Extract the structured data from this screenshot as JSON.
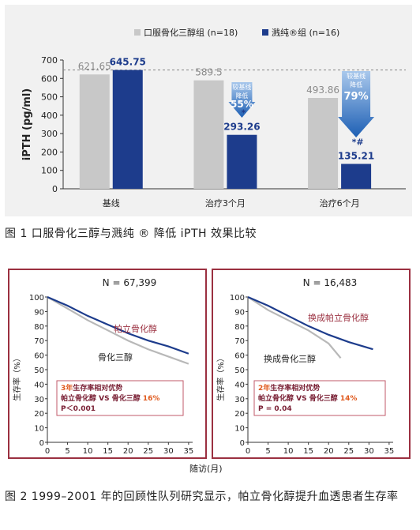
{
  "figure1": {
    "caption": "图 1  口服骨化三醇与溅纯 ® 降低 iPTH 效果比较",
    "chart_data": {
      "type": "bar",
      "ylabel": "iPTH (pg/ml)",
      "ylim": [
        0,
        700
      ],
      "yticks": [
        0,
        100,
        200,
        300,
        400,
        500,
        600,
        700
      ],
      "categories": [
        "基线",
        "治疗3个月",
        "治疗6个月"
      ],
      "series": [
        {
          "name": "口服骨化三醇组 (n=18)",
          "color": "#c8c8c8",
          "values": [
            621.65,
            589.5,
            493.86
          ],
          "labels": [
            "621.65",
            "589.5",
            "493.86"
          ]
        },
        {
          "name": "溅纯®组 (n=16)",
          "color": "#1d3c8c",
          "values": [
            645.75,
            293.26,
            135.21
          ],
          "labels": [
            "645.75",
            "293.26",
            "135.21"
          ]
        }
      ],
      "reference_line": 645.75,
      "annotations": [
        {
          "category": 1,
          "line1": "较基线",
          "line2": "降低",
          "pct": "55%",
          "mark": "*"
        },
        {
          "category": 2,
          "line1": "较基线",
          "line2": "降低",
          "pct": "79%",
          "mark": "*#"
        }
      ],
      "legend_position": "top",
      "grid": false
    }
  },
  "figure2": {
    "caption": "图 2  1999–2001 年的回顾性队列研究显示，帕立骨化醇提升血透患者生存率",
    "xlabel": "随访(月)",
    "ylabel": "生存率（%）",
    "chart_data": [
      {
        "type": "line",
        "title": "N = 67,399",
        "xlim": [
          0,
          36
        ],
        "ylim": [
          0,
          100
        ],
        "xticks": [
          0,
          5,
          10,
          15,
          20,
          25,
          30,
          35
        ],
        "yticks": [
          0,
          10,
          20,
          30,
          40,
          50,
          60,
          70,
          80,
          90,
          100
        ],
        "series": [
          {
            "name": "帕立骨化醇",
            "color": "#1d3c8c",
            "x": [
              0,
              5,
              10,
              15,
              20,
              25,
              30,
              35
            ],
            "y": [
              100,
              94,
              87,
              81,
              75,
              70,
              66,
              61
            ]
          },
          {
            "name": "骨化三醇",
            "color": "#b8b8b8",
            "x": [
              0,
              5,
              10,
              15,
              20,
              25,
              30,
              35
            ],
            "y": [
              100,
              92,
              84,
              77,
              70,
              64,
              59,
              54
            ]
          }
        ],
        "note": {
          "line1_em": "3年",
          "line1": "生存率相对优势",
          "line2a": "帕立骨化醇 VS 骨化三醇 ",
          "line2b": "16%",
          "line3": "P＜0.001"
        }
      },
      {
        "type": "line",
        "title": "N = 16,483",
        "xlim": [
          0,
          36
        ],
        "ylim": [
          0,
          100
        ],
        "xticks": [
          0,
          5,
          10,
          15,
          20,
          25,
          30,
          35
        ],
        "yticks": [
          0,
          10,
          20,
          30,
          40,
          50,
          60,
          70,
          80,
          90,
          100
        ],
        "series": [
          {
            "name": "换成帕立骨化醇",
            "color": "#1d3c8c",
            "x": [
              0,
              5,
              10,
              15,
              20,
              25,
              31
            ],
            "y": [
              100,
              94,
              87,
              80,
              74,
              69,
              64
            ]
          },
          {
            "name": "换成骨化三醇",
            "color": "#b8b8b8",
            "x": [
              0,
              5,
              10,
              15,
              20,
              23
            ],
            "y": [
              100,
              91,
              84,
              77,
              68,
              58
            ]
          }
        ],
        "note": {
          "line1_em": "2年",
          "line1": "生存率相对优势",
          "line2a": "帕立骨化醇 VS 骨化三醇 ",
          "line2b": "14%",
          "line3": "P = 0.04"
        }
      }
    ]
  }
}
